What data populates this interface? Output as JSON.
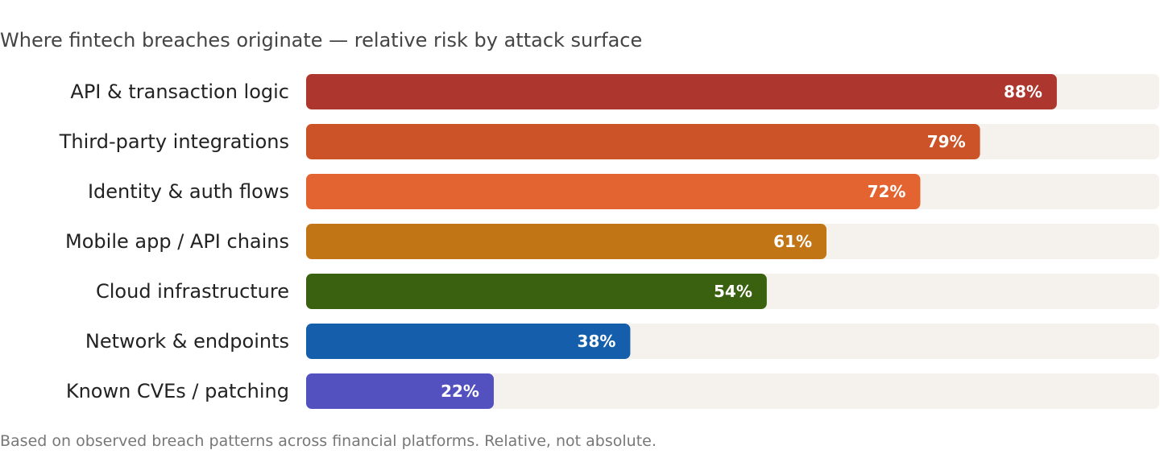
{
  "chart_data": {
    "type": "bar",
    "orientation": "horizontal",
    "title": "Where fintech breaches originate — relative risk by attack surface",
    "footnote": "Based on observed breach patterns across financial platforms. Relative, not absolute.",
    "xlim": [
      0,
      100
    ],
    "grid": false,
    "value_suffix": "%",
    "track_color": "#f5f1ec",
    "bars": [
      {
        "category": "API & transaction logic",
        "value": 88,
        "label": "88%",
        "color": "#ad372f"
      },
      {
        "category": "Third-party integrations",
        "value": 79,
        "label": "79%",
        "color": "#cc5228"
      },
      {
        "category": "Identity & auth flows",
        "value": 72,
        "label": "72%",
        "color": "#e46431"
      },
      {
        "category": "Mobile app / API chains",
        "value": 61,
        "label": "61%",
        "color": "#c27515"
      },
      {
        "category": "Cloud infrastructure",
        "value": 54,
        "label": "54%",
        "color": "#3a610f"
      },
      {
        "category": "Network & endpoints",
        "value": 38,
        "label": "38%",
        "color": "#145eab"
      },
      {
        "category": "Known CVEs / patching",
        "value": 22,
        "label": "22%",
        "color": "#5350bf"
      }
    ]
  }
}
